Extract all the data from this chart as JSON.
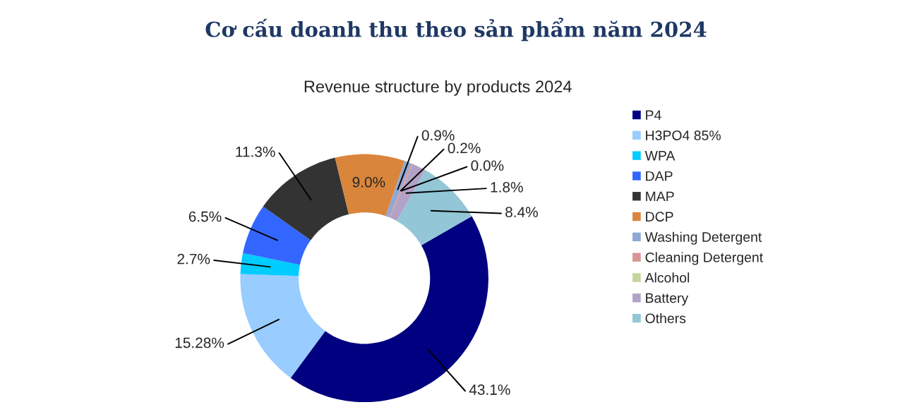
{
  "chart_data": {
    "type": "donut",
    "title": "Cơ cấu doanh thu theo sản phẩm năm 2024",
    "subtitle": "Revenue structure by products 2024",
    "categories": [
      "P4",
      "H3PO4 85%",
      "WPA",
      "DAP",
      "MAP",
      "DCP",
      "Washing Detergent",
      "Cleaning Detergent",
      "Alcohol",
      "Battery",
      "Others"
    ],
    "values": [
      43.1,
      15.28,
      2.7,
      6.5,
      11.3,
      9.0,
      0.9,
      0.2,
      0.0,
      1.8,
      8.4
    ],
    "colors": [
      "#000080",
      "#99ccff",
      "#00ccff",
      "#3366ff",
      "#333333",
      "#d9853b",
      "#8fa9d5",
      "#d99694",
      "#c3d69b",
      "#b3a2c7",
      "#93c6d6"
    ],
    "value_labels": [
      "43.1%",
      "15.28%",
      "2.7%",
      "6.5%",
      "11.3%",
      "9.0%",
      "0.9%",
      "0.2%",
      "0.0%",
      "1.8%",
      "8.4%"
    ],
    "legend": "right"
  }
}
